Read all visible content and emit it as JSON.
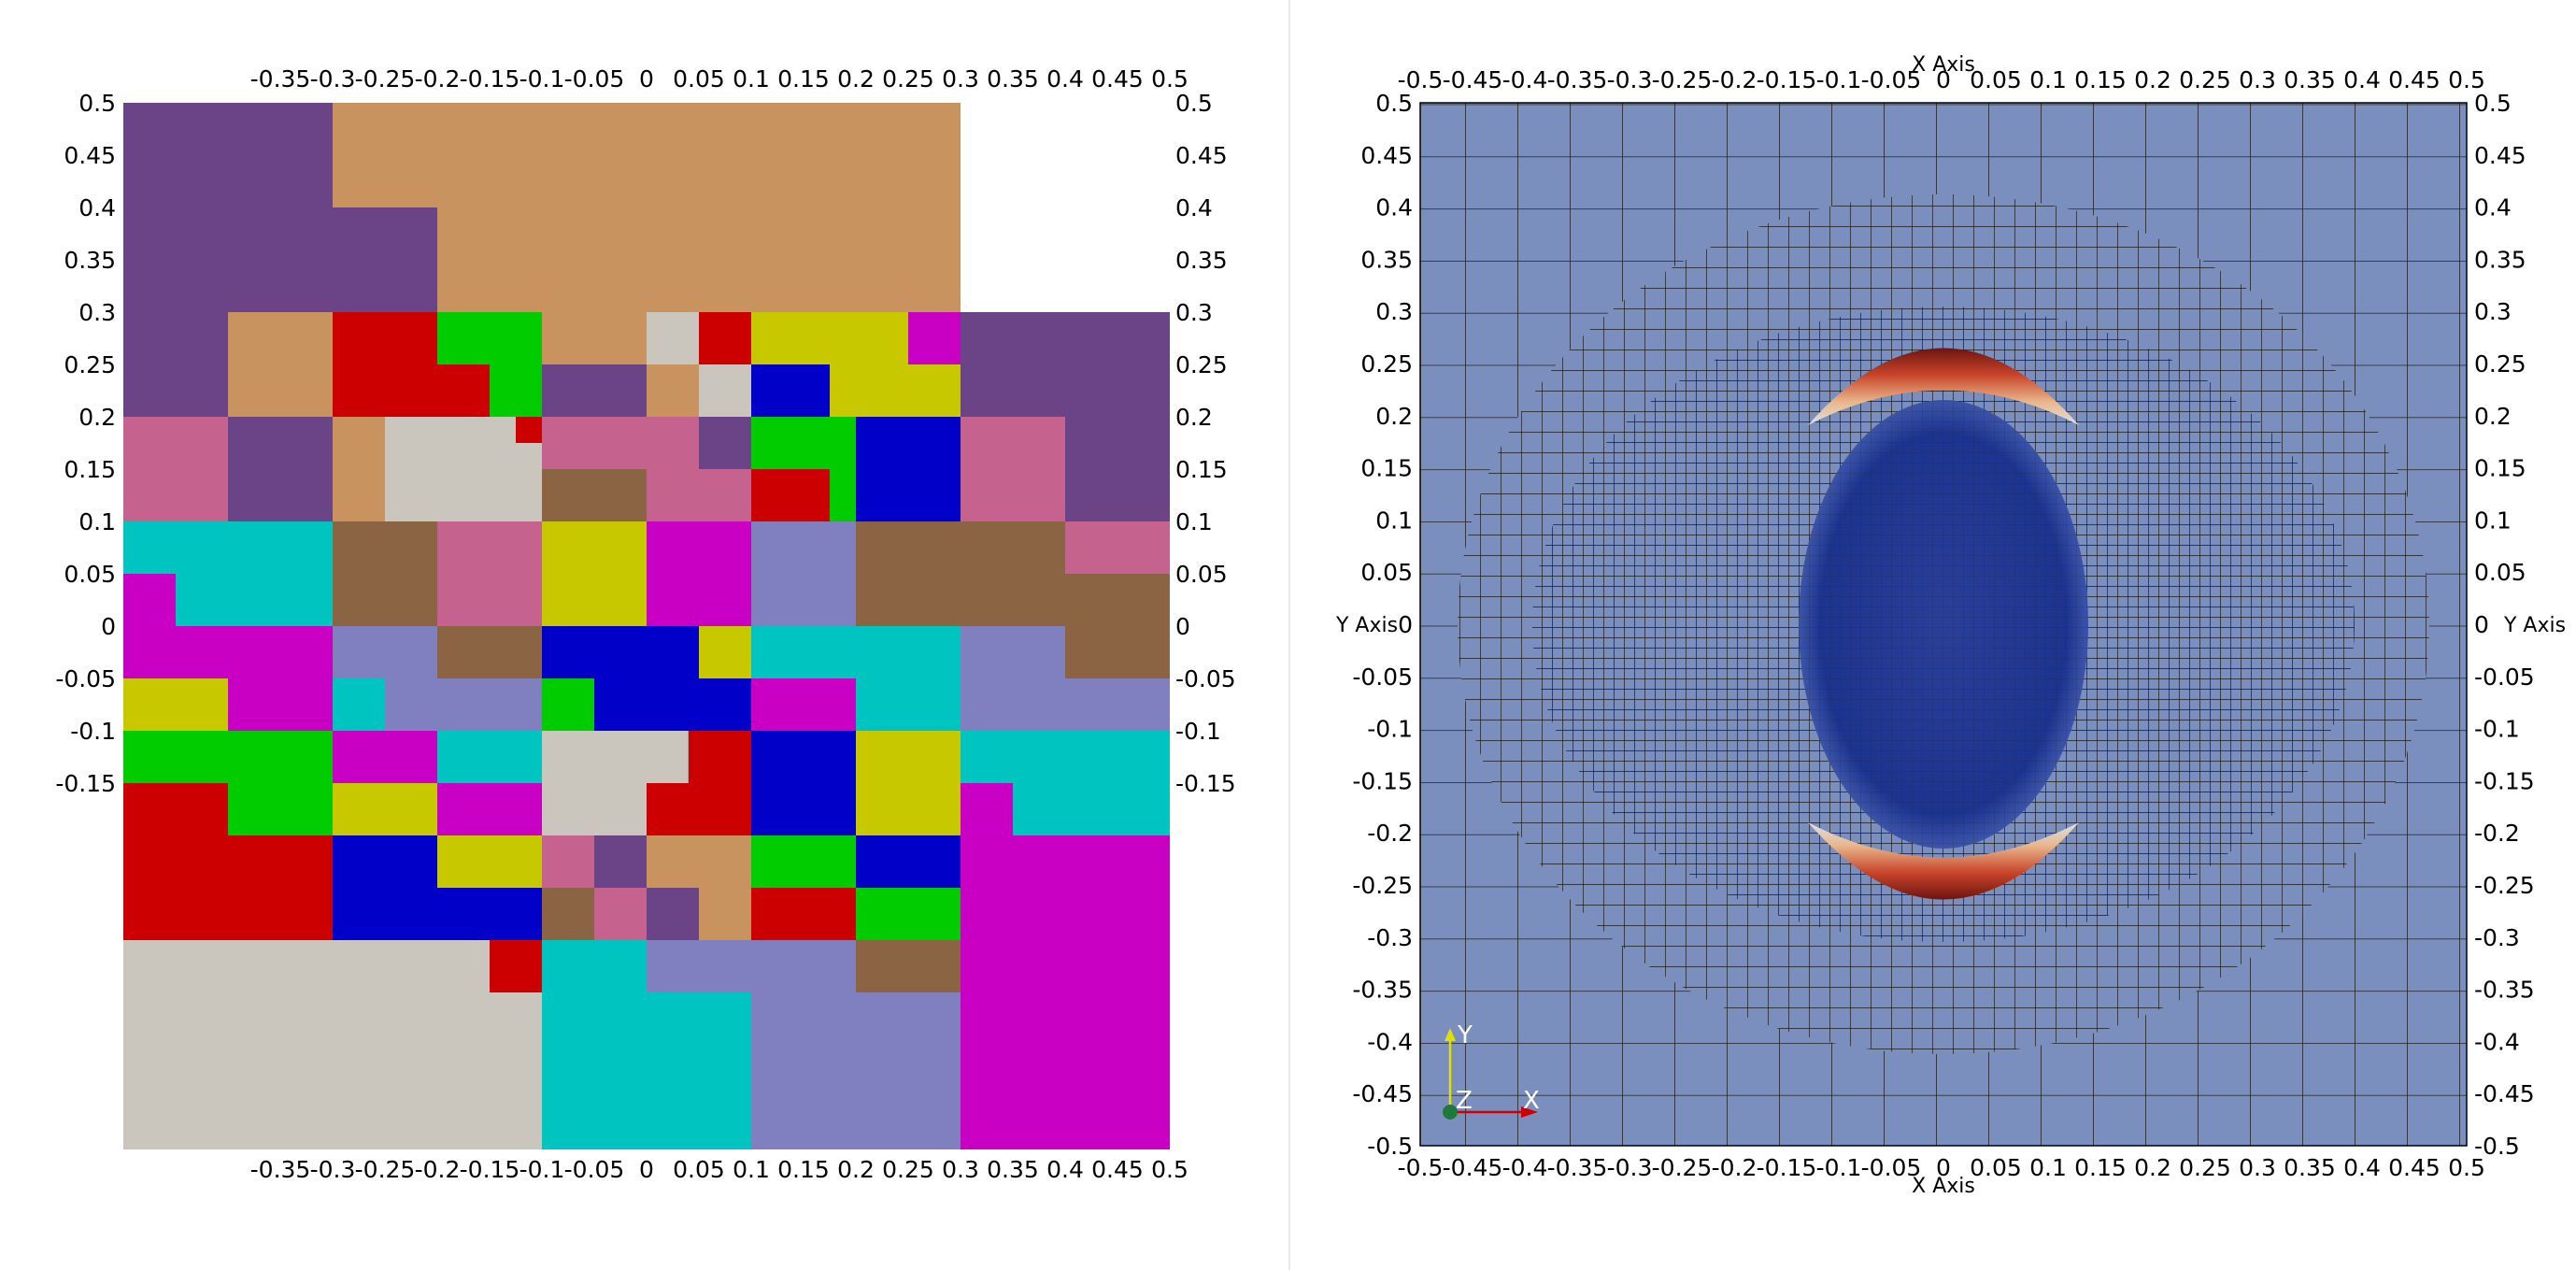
{
  "left_panel": {
    "x_ticks": [
      "-0.35",
      "-0.3",
      "-0.25",
      "-0.2",
      "-0.15",
      "-0.1",
      "-0.05",
      "0",
      "0.05",
      "0.1",
      "0.15",
      "0.2",
      "0.25",
      "0.3",
      "0.35",
      "0.4",
      "0.45",
      "0.5"
    ],
    "y_ticks": [
      "0.5",
      "0.45",
      "0.4",
      "0.35",
      "0.3",
      "0.25",
      "0.2",
      "0.15",
      "0.1",
      "0.05",
      "0",
      "-0.05",
      "-0.1",
      "-0.15"
    ],
    "colors": {
      "purple": "#6b4487",
      "tan": "#c9935f",
      "pink": "#c6628e",
      "cyan": "#00c4c0",
      "brown": "#8a6443",
      "magenta": "#c900c3",
      "lavender": "#8080c0",
      "yellow": "#c8c800",
      "green": "#00cc00",
      "red": "#cc0000",
      "blue": "#0000c8",
      "grey": "#cac6bd"
    }
  },
  "right_panel": {
    "x_axis_title": "X Axis",
    "y_axis_title": "Y Axis",
    "x_ticks": [
      "-0.5",
      "-0.45",
      "-0.4",
      "-0.35",
      "-0.3",
      "-0.25",
      "-0.2",
      "-0.15",
      "-0.1",
      "-0.05",
      "0",
      "0.05",
      "0.1",
      "0.15",
      "0.2",
      "0.25",
      "0.3",
      "0.35",
      "0.4",
      "0.45",
      "0.5"
    ],
    "y_ticks": [
      "0.5",
      "0.45",
      "0.4",
      "0.35",
      "0.3",
      "0.25",
      "0.2",
      "0.15",
      "0.1",
      "0.05",
      "0",
      "-0.05",
      "-0.1",
      "-0.15",
      "-0.2",
      "-0.25",
      "-0.3",
      "-0.35",
      "-0.4",
      "-0.45",
      "-0.5"
    ],
    "background_color": "#7b8fbf",
    "ellipse_color": "#1c3590",
    "ring_color": "#b83a28",
    "triad": {
      "x_label": "X",
      "y_label": "Y",
      "z_label": "Z"
    }
  }
}
